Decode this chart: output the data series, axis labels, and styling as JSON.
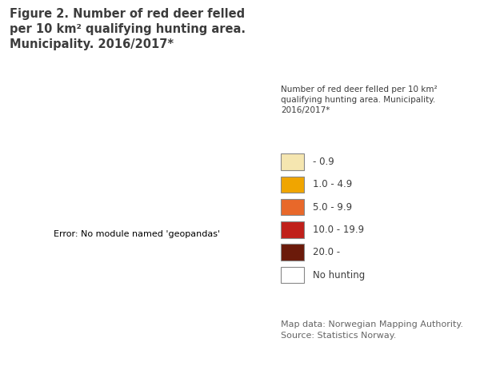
{
  "title": "Figure 2. Number of red deer felled\nper 10 km² qualifying hunting area.\nMunicipality. 2016/2017*",
  "title_fontsize": 10.5,
  "title_color": "#3c3c3c",
  "legend_title": "Number of red deer felled per 10 km²\nqualifying hunting area. Municipality.\n2016/2017*",
  "legend_labels": [
    "- 0.9",
    "1.0 - 4.9",
    "5.0 - 9.9",
    "10.0 - 19.9",
    "20.0 -",
    "No hunting"
  ],
  "legend_colors": [
    "#f5e6b0",
    "#f0a500",
    "#e8682a",
    "#c0201a",
    "#6b1a0a",
    "#ffffff"
  ],
  "source_text": "Map data: Norwegian Mapping Authority.\nSource: Statistics Norway.",
  "source_fontsize": 8,
  "source_color": "#666666",
  "background_color": "#ffffff",
  "map_xlim": [
    3.5,
    31.5
  ],
  "map_ylim": [
    57.5,
    71.5
  ],
  "neighbor_color": "#e8e8e8",
  "neighbor_edge": "#bbbbbb",
  "norway_default_color": "#f5e6b0",
  "norway_edge_color": "#999999",
  "sea_color": "#ffffff"
}
